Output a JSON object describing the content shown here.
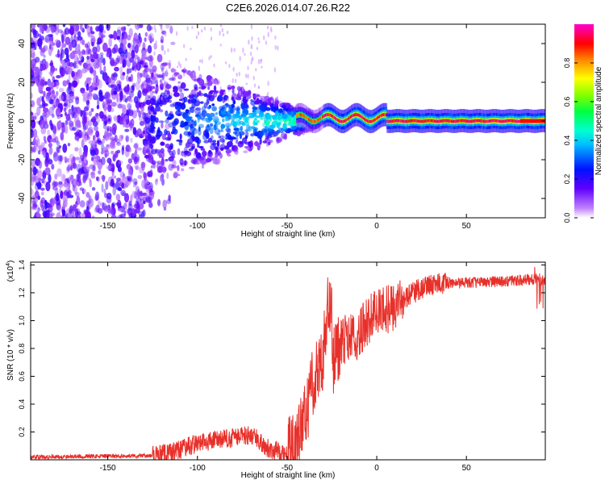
{
  "title": "C2E6.2026.014.07.26.R22",
  "chart_data": [
    {
      "type": "heatmap",
      "xlabel": "Height of straight line (km)",
      "ylabel": "Frequency (Hz)",
      "xlim": [
        -193,
        94
      ],
      "ylim": [
        -50,
        50
      ],
      "xticks": [
        -150,
        -100,
        -50,
        0,
        50
      ],
      "yticks": [
        -40,
        -20,
        0,
        20,
        40
      ],
      "colorbar": {
        "label": "Normalized spectral amplitude",
        "range": [
          0,
          1
        ],
        "ticks": [
          "0.0",
          "0.2",
          "0.4",
          "0.6",
          "0.8"
        ],
        "colormap": [
          "#ffffff",
          "#9b20ff",
          "#4b00ff",
          "#0000ff",
          "#00b0ff",
          "#00ffff",
          "#00ff80",
          "#00ff00",
          "#80ff00",
          "#ffff00",
          "#ff8000",
          "#ff0000",
          "#ff00c0"
        ]
      },
      "description_values": {
        "noise_region_x": [
          -193,
          -125
        ],
        "narrowing_region_x": [
          -125,
          -40
        ],
        "carrier_x_range": [
          -40,
          94
        ],
        "carrier_frequency_hz": 0,
        "high_amplitude_x": [
          -30,
          94
        ]
      }
    },
    {
      "type": "line",
      "xlabel": "Height of straight line (km)",
      "ylabel": "SNR (10 * v/v)",
      "multiplier_label": "(x10",
      "multiplier_exp": "4",
      "xlim": [
        -193,
        94
      ],
      "ylim": [
        0,
        1.42
      ],
      "xticks": [
        -150,
        -100,
        -50,
        0,
        50
      ],
      "yticks": [
        "0.2",
        "0.4",
        "0.6",
        "0.8",
        "1.0",
        "1.2",
        "1.4"
      ],
      "series": [
        {
          "name": "SNR",
          "color": "#e8302a",
          "points": [
            [
              -193,
              0.02
            ],
            [
              -125,
              0.03
            ],
            [
              -115,
              0.05
            ],
            [
              -100,
              0.12
            ],
            [
              -85,
              0.15
            ],
            [
              -70,
              0.18
            ],
            [
              -60,
              0.08
            ],
            [
              -50,
              0.05
            ],
            [
              -45,
              0.1
            ],
            [
              -40,
              0.3
            ],
            [
              -35,
              0.6
            ],
            [
              -30,
              0.75
            ],
            [
              -26,
              1.3
            ],
            [
              -25,
              0.7
            ],
            [
              -20,
              0.85
            ],
            [
              -10,
              0.9
            ],
            [
              -5,
              1.0
            ],
            [
              0,
              1.05
            ],
            [
              10,
              1.1
            ],
            [
              20,
              1.2
            ],
            [
              30,
              1.26
            ],
            [
              40,
              1.27
            ],
            [
              50,
              1.27
            ],
            [
              60,
              1.28
            ],
            [
              70,
              1.28
            ],
            [
              80,
              1.29
            ],
            [
              90,
              1.3
            ],
            [
              94,
              1.28
            ]
          ]
        }
      ]
    }
  ]
}
